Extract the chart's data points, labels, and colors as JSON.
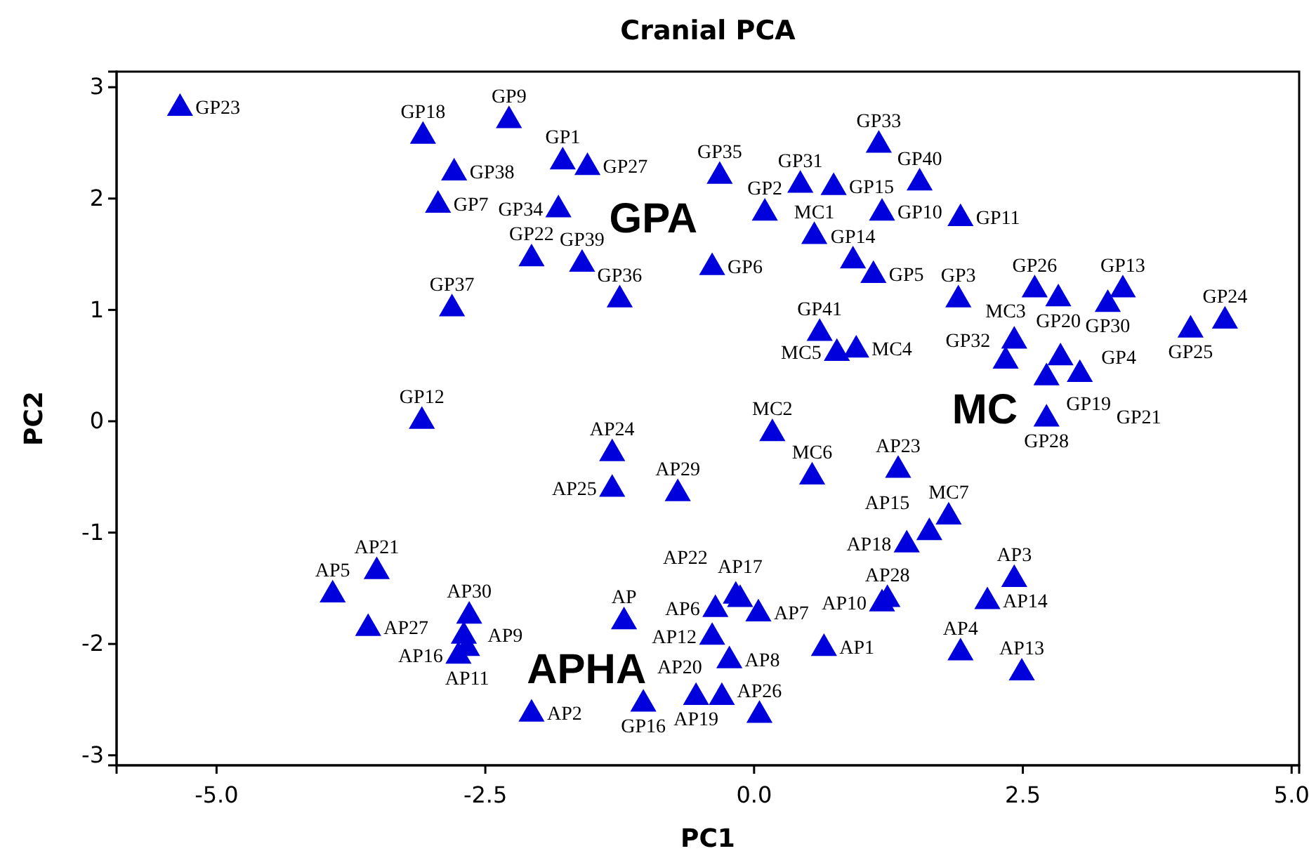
{
  "chart_data": {
    "type": "scatter",
    "title": "Cranial PCA",
    "xlabel": "PC1",
    "ylabel": "PC2",
    "xlim": [
      -5.93,
      5.07
    ],
    "ylim": [
      -3.09,
      3.14
    ],
    "xticks": [
      {
        "value": -5,
        "label": "-5.0"
      },
      {
        "value": -2.5,
        "label": "-2.5"
      },
      {
        "value": 0,
        "label": "0.0"
      },
      2.5,
      {
        "value": 5,
        "label": "5.0"
      }
    ],
    "yticks": [
      -3,
      -2,
      -1,
      0,
      1,
      2,
      3
    ],
    "grid": false,
    "marker": "triangle",
    "series": [
      {
        "color": "#0000dd",
        "x": [
          -5.34,
          -3.08,
          -2.28,
          -2.79,
          -2.94,
          -1.78,
          -1.55,
          -1.82,
          -2.07,
          -1.6,
          -1.25,
          -2.81,
          -3.09,
          -0.32,
          0.1,
          0.43,
          0.74,
          1.16,
          1.54,
          1.19,
          1.92,
          0.56,
          0.92,
          1.11,
          -0.39,
          1.9,
          2.61,
          2.83,
          3.29,
          3.43,
          4.06,
          4.38,
          0.61,
          0.77,
          0.95,
          2.42,
          2.34,
          2.85,
          2.72,
          3.03,
          2.72,
          0.17,
          0.54,
          1.34,
          1.81,
          1.63,
          1.42,
          2.42,
          2.17,
          1.24,
          1.19,
          1.92,
          2.49,
          0.65,
          0.04,
          -0.13,
          -0.17,
          -0.36,
          -0.39,
          -0.23,
          -0.54,
          -0.3,
          0.05,
          -1.21,
          -1.32,
          -1.32,
          -0.71,
          -3.51,
          -3.92,
          -3.59,
          -2.65,
          -2.7,
          -2.67,
          -2.75,
          -2.07,
          -1.03
        ],
        "values": [
          2.81,
          2.56,
          2.7,
          2.23,
          1.94,
          2.33,
          2.28,
          1.9,
          1.46,
          1.41,
          1.09,
          1.01,
          0,
          2.2,
          1.87,
          2.12,
          2.1,
          2.48,
          2.14,
          1.87,
          1.82,
          1.66,
          1.44,
          1.31,
          1.38,
          1.09,
          1.18,
          1.1,
          1.05,
          1.18,
          0.82,
          0.9,
          0.79,
          0.61,
          0.64,
          0.72,
          0.54,
          0.57,
          0.39,
          0.42,
          0.02,
          -0.11,
          -0.5,
          -0.44,
          -0.86,
          -1,
          -1.11,
          -1.42,
          -1.62,
          -1.6,
          -1.64,
          -2.08,
          -2.26,
          -2.04,
          -1.73,
          -1.6,
          -1.57,
          -1.69,
          -1.94,
          -2.15,
          -2.48,
          -2.48,
          -2.64,
          -1.8,
          -0.29,
          -0.61,
          -0.65,
          -1.35,
          -1.56,
          -1.86,
          -1.75,
          -1.93,
          -2.04,
          -2.11,
          -2.63,
          -2.54
        ]
      }
    ],
    "annotations": [
      "GPA",
      "MC",
      "APHA",
      {
        "text": "GP23",
        "x": -5.34,
        "y": 2.81
      },
      {
        "text": "GP18",
        "x": -3.08,
        "y": 2.56
      },
      {
        "text": "GP9",
        "x": -2.28,
        "y": 2.7
      },
      {
        "text": "GP38",
        "x": -2.79,
        "y": 2.23
      },
      {
        "text": "GP7",
        "x": -2.94,
        "y": 1.94
      },
      {
        "text": "GP1",
        "x": -1.78,
        "y": 2.33
      },
      {
        "text": "GP27",
        "x": -1.55,
        "y": 2.28
      },
      {
        "text": "GP34",
        "x": -1.82,
        "y": 1.9
      },
      {
        "text": "GP22",
        "x": -2.07,
        "y": 1.46
      },
      {
        "text": "GP39",
        "x": -1.6,
        "y": 1.41
      },
      {
        "text": "GP36",
        "x": -1.25,
        "y": 1.09
      },
      {
        "text": "GP37",
        "x": -2.81,
        "y": 1.01
      },
      {
        "text": "GP12",
        "x": -3.09,
        "y": 0
      },
      {
        "text": "GP35",
        "x": -0.32,
        "y": 2.2
      },
      {
        "text": "GP2",
        "x": 0.1,
        "y": 1.87
      },
      {
        "text": "GP31",
        "x": 0.43,
        "y": 2.12
      },
      {
        "text": "GP15",
        "x": 0.74,
        "y": 2.1
      },
      {
        "text": "GP33",
        "x": 1.16,
        "y": 2.48
      },
      {
        "text": "GP40",
        "x": 1.54,
        "y": 2.14
      },
      {
        "text": "GP10",
        "x": 1.19,
        "y": 1.87
      },
      {
        "text": "GP11",
        "x": 1.92,
        "y": 1.82
      },
      {
        "text": "MC1",
        "x": 0.56,
        "y": 1.66
      },
      {
        "text": "GP14",
        "x": 0.92,
        "y": 1.44
      },
      {
        "text": "GP5",
        "x": 1.11,
        "y": 1.31
      },
      {
        "text": "GP6",
        "x": -0.39,
        "y": 1.38
      },
      {
        "text": "GP3",
        "x": 1.9,
        "y": 1.09
      },
      {
        "text": "GP26",
        "x": 2.61,
        "y": 1.18
      },
      {
        "text": "GP20",
        "x": 2.83,
        "y": 1.1
      },
      {
        "text": "GP30",
        "x": 3.29,
        "y": 1.05
      },
      {
        "text": "GP13",
        "x": 3.43,
        "y": 1.18
      },
      {
        "text": "GP25",
        "x": 4.06,
        "y": 0.82
      },
      {
        "text": "GP24",
        "x": 4.38,
        "y": 0.9
      },
      {
        "text": "GP41",
        "x": 0.61,
        "y": 0.79
      },
      {
        "text": "MC5",
        "x": 0.77,
        "y": 0.61
      },
      {
        "text": "MC4",
        "x": 0.95,
        "y": 0.64
      },
      {
        "text": "GP32",
        "x": 2.42,
        "y": 0.72
      },
      {
        "text": "MC3",
        "x": 2.34,
        "y": 0.54
      },
      {
        "text": "GP4",
        "x": 2.85,
        "y": 0.57
      },
      {
        "text": "GP19",
        "x": 2.72,
        "y": 0.39
      },
      {
        "text": "GP21",
        "x": 3.03,
        "y": 0.42
      },
      {
        "text": "GP28",
        "x": 2.72,
        "y": 0.02
      },
      {
        "text": "MC2",
        "x": 0.17,
        "y": -0.11
      },
      {
        "text": "MC6",
        "x": 0.54,
        "y": -0.5
      },
      {
        "text": "AP23",
        "x": 1.34,
        "y": -0.44
      },
      {
        "text": "MC7",
        "x": 1.81,
        "y": -0.86
      },
      {
        "text": "AP15",
        "x": 1.63,
        "y": -1
      },
      {
        "text": "AP18",
        "x": 1.42,
        "y": -1.11
      },
      {
        "text": "AP3",
        "x": 2.42,
        "y": -1.42
      },
      {
        "text": "AP14",
        "x": 2.17,
        "y": -1.62
      },
      {
        "text": "AP28",
        "x": 1.24,
        "y": -1.6
      },
      {
        "text": "AP10",
        "x": 1.19,
        "y": -1.64
      },
      {
        "text": "AP4",
        "x": 1.92,
        "y": -2.08
      },
      {
        "text": "AP13",
        "x": 2.49,
        "y": -2.26
      },
      {
        "text": "AP1",
        "x": 0.65,
        "y": -2.04
      },
      {
        "text": "AP7",
        "x": 0.04,
        "y": -1.73
      },
      {
        "text": "AP17",
        "x": -0.13,
        "y": -1.6
      },
      {
        "text": "AP22",
        "x": -0.17,
        "y": -1.57
      },
      {
        "text": "AP6",
        "x": -0.36,
        "y": -1.69
      },
      {
        "text": "AP12",
        "x": -0.39,
        "y": -1.94
      },
      {
        "text": "AP8",
        "x": -0.23,
        "y": -2.15
      },
      {
        "text": "AP19",
        "x": -0.54,
        "y": -2.48
      },
      {
        "text": "AP20",
        "x": -0.3,
        "y": -2.48
      },
      {
        "text": "AP26",
        "x": 0.05,
        "y": -2.64
      },
      {
        "text": "AP",
        "x": -1.21,
        "y": -1.8
      },
      {
        "text": "AP24",
        "x": -1.32,
        "y": -0.29
      },
      {
        "text": "AP25",
        "x": -1.32,
        "y": -0.61
      },
      {
        "text": "AP29",
        "x": -0.71,
        "y": -0.65
      },
      {
        "text": "AP21",
        "x": -3.51,
        "y": -1.35
      },
      {
        "text": "AP5",
        "x": -3.92,
        "y": -1.56
      },
      {
        "text": "AP27",
        "x": -3.59,
        "y": -1.86
      },
      {
        "text": "AP30",
        "x": -2.65,
        "y": -1.75
      },
      {
        "text": "AP9",
        "x": -2.7,
        "y": -1.93
      },
      {
        "text": "AP11",
        "x": -2.67,
        "y": -2.04
      },
      {
        "text": "AP16",
        "x": -2.75,
        "y": -2.11
      },
      {
        "text": "AP2",
        "x": -2.07,
        "y": -2.63
      },
      {
        "text": "GP16",
        "x": -1.03,
        "y": -2.54
      }
    ]
  }
}
